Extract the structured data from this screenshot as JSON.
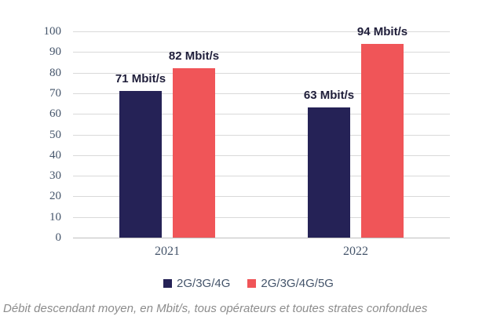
{
  "chart_data": {
    "type": "bar",
    "title": "",
    "categories": [
      "2021",
      "2022"
    ],
    "series": [
      {
        "name": "2G/3G/4G",
        "color": "#252256",
        "values": [
          71,
          63
        ],
        "data_labels": [
          "71 Mbit/s",
          "63 Mbit/s"
        ]
      },
      {
        "name": "2G/3G/4G/5G",
        "color": "#f05558",
        "values": [
          82,
          94
        ],
        "data_labels": [
          "82 Mbit/s",
          "94 Mbit/s"
        ]
      }
    ],
    "unit": "Mbit/s",
    "xlabel": "",
    "ylabel": "",
    "ylim": [
      0,
      100
    ],
    "ytick_step": 10,
    "grid": true,
    "legend_position": "bottom"
  },
  "caption": "Débit descendant moyen, en Mbit/s, tous opérateurs et toutes strates confondues",
  "colors": {
    "bar_navy": "#252256",
    "bar_red": "#f05558",
    "gridline": "#d9d9d9",
    "axis_baseline": "#bfbfbf",
    "axis_text": "#44546a",
    "value_label_text": "#1f1e3a",
    "legend_text": "#44546a",
    "caption_text": "#8c8c8c"
  }
}
